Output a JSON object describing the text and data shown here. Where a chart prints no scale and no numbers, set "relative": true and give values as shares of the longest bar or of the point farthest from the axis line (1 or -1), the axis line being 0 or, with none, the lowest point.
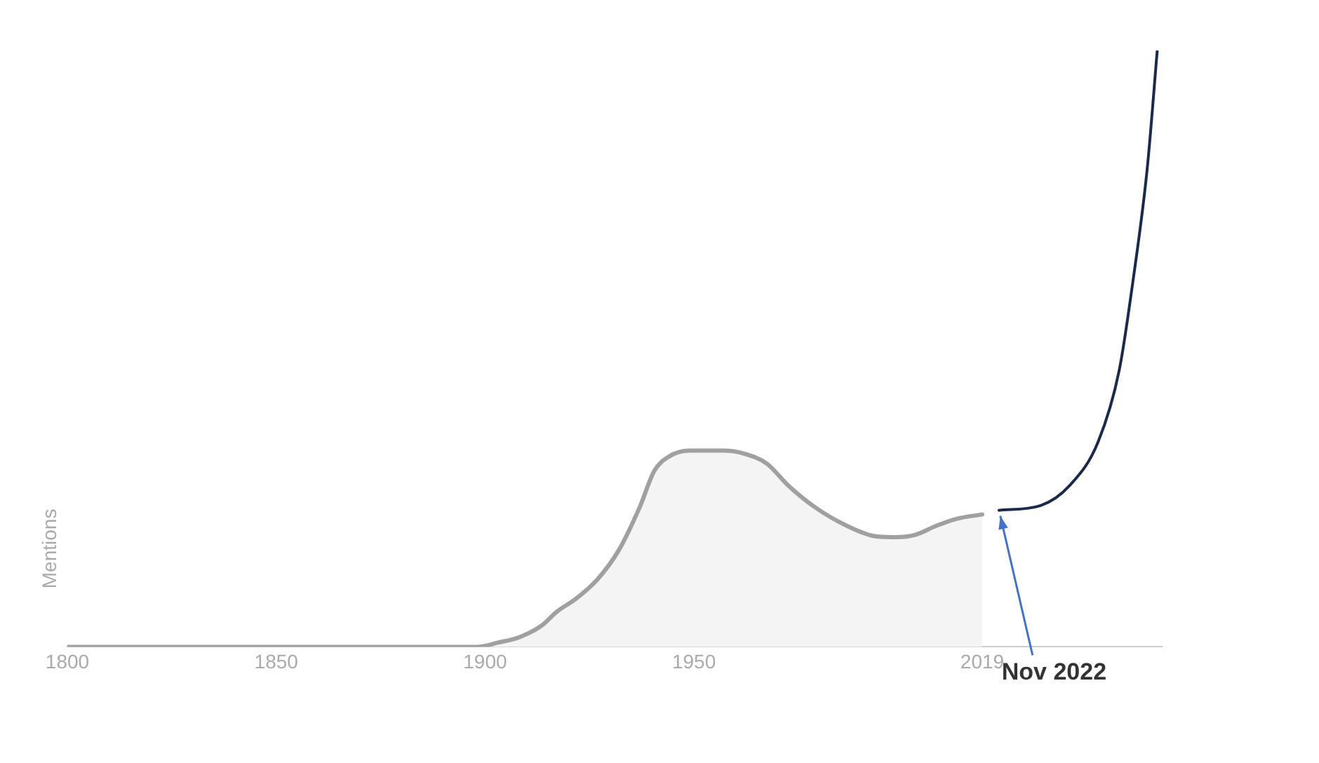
{
  "chart_data": {
    "type": "area",
    "ylabel": "Mentions",
    "relative": true,
    "xlim": [
      1800,
      2062
    ],
    "xticks": [
      1800,
      1850,
      1900,
      1950,
      2019
    ],
    "grid": false,
    "legend": false,
    "marker": "none",
    "series": [
      {
        "type": "area",
        "color": "#a0a0a0",
        "x": [
          1800,
          1898,
          1903,
          1908.5,
          1913.6,
          1917,
          1922,
          1927,
          1932,
          1937,
          1940.5,
          1944,
          1949,
          1957,
          1962,
          1967.5,
          1972.5,
          1979,
          1986,
          1993,
          1998,
          2003,
          2008,
          2013,
          2019
        ],
        "values": [
          0,
          0,
          0.007,
          0.017,
          0.036,
          0.058,
          0.082,
          0.114,
          0.162,
          0.234,
          0.295,
          0.319,
          0.329,
          0.329,
          0.324,
          0.307,
          0.271,
          0.234,
          0.205,
          0.186,
          0.184,
          0.188,
          0.203,
          0.215,
          0.222
        ]
      },
      {
        "type": "line",
        "color": "#1a2a4a",
        "x": [
          2023,
          2033,
          2040,
          2046.7,
          2051.8,
          2055,
          2058.5,
          2060.9
        ],
        "values": [
          0.229,
          0.237,
          0.271,
          0.343,
          0.464,
          0.609,
          0.802,
          1
        ]
      }
    ],
    "annotations": [
      {
        "text": "Nov 2022",
        "x": 2023,
        "y": 0.229
      }
    ]
  }
}
